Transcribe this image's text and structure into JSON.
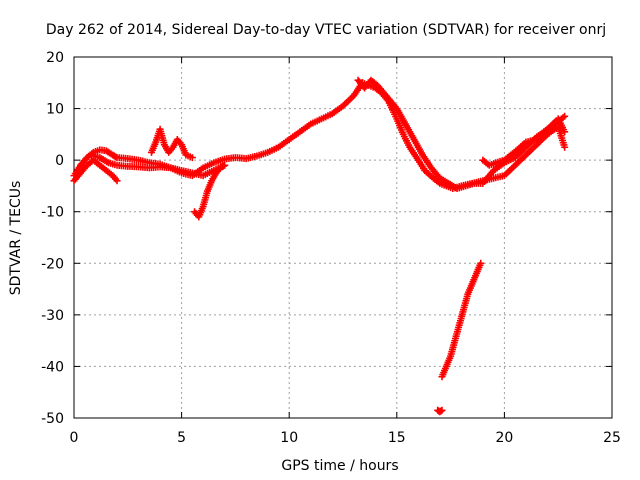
{
  "chart_data": {
    "type": "scatter",
    "title": "Day 262 of 2014, Sidereal Day-to-day VTEC variation (SDTVAR) for receiver onrj",
    "xlabel": "GPS time / hours",
    "ylabel": "SDTVAR / TECUs",
    "xlim": [
      0,
      25
    ],
    "ylim": [
      -50,
      20
    ],
    "xticks": [
      0,
      5,
      10,
      15,
      20,
      25
    ],
    "yticks": [
      -50,
      -40,
      -30,
      -20,
      -10,
      0,
      10,
      20
    ],
    "xtick_labels": [
      "0",
      "5",
      "10",
      "15",
      "20",
      "25"
    ],
    "ytick_labels": [
      "-50",
      "-40",
      "-30",
      "-20",
      "-10",
      "0",
      "10",
      "20"
    ],
    "grid": true,
    "marker": "+",
    "color": "#ff0000",
    "series": [
      {
        "name": "track-a",
        "x": [
          0.0,
          0.3,
          0.6,
          0.9,
          1.2,
          1.5,
          1.8,
          2.0,
          2.5,
          3.0,
          3.5,
          4.0,
          4.5,
          5.0,
          5.5,
          6.0,
          6.5,
          7.0,
          7.5,
          8.0,
          8.5,
          9.0,
          9.5,
          10.0,
          10.5,
          11.0,
          11.5,
          12.0,
          12.5,
          13.0,
          13.4
        ],
        "y": [
          -3.0,
          -1.0,
          0.5,
          1.5,
          2.0,
          1.8,
          1.0,
          0.5,
          0.3,
          0.0,
          -0.5,
          -0.8,
          -1.5,
          -2.5,
          -3.0,
          -1.5,
          -0.5,
          0.2,
          0.5,
          0.3,
          0.8,
          1.5,
          2.5,
          4.0,
          5.5,
          7.0,
          8.0,
          9.0,
          10.5,
          12.5,
          15.0
        ]
      },
      {
        "name": "track-b",
        "x": [
          0.0,
          0.3,
          0.6,
          0.9,
          1.2,
          1.5,
          1.8,
          2.0
        ],
        "y": [
          -4.0,
          -2.5,
          -1.0,
          0.0,
          -1.0,
          -2.0,
          -3.0,
          -4.0
        ]
      },
      {
        "name": "track-c",
        "x": [
          0.8,
          1.2,
          1.6,
          2.0,
          2.5,
          3.0,
          3.5,
          4.0,
          4.5,
          5.0,
          5.5,
          6.0,
          6.5,
          7.0
        ],
        "y": [
          1.0,
          0.5,
          -0.5,
          -1.0,
          -1.2,
          -1.3,
          -1.5,
          -1.3,
          -1.5,
          -2.0,
          -2.5,
          -3.0,
          -2.0,
          -1.0
        ]
      },
      {
        "name": "track-d",
        "x": [
          3.6,
          3.8,
          4.0,
          4.2,
          4.4,
          4.6,
          4.8,
          5.0,
          5.2,
          5.5
        ],
        "y": [
          1.5,
          3.5,
          6.0,
          3.0,
          1.5,
          2.5,
          4.0,
          3.0,
          1.0,
          0.5
        ]
      },
      {
        "name": "track-e",
        "x": [
          5.6,
          5.8,
          6.0,
          6.2,
          6.4,
          6.6,
          6.8,
          7.0
        ],
        "y": [
          -10.0,
          -11.0,
          -9.0,
          -6.0,
          -4.0,
          -2.5,
          -1.5,
          -1.0
        ]
      },
      {
        "name": "track-f",
        "x": [
          13.4,
          13.7,
          14.0,
          14.3,
          14.6,
          15.0,
          15.3,
          15.6,
          16.0,
          16.3,
          16.7,
          17.0,
          17.3,
          17.6,
          18.0,
          18.5,
          19.0,
          19.5,
          20.0,
          20.5,
          21.0,
          21.5,
          22.0,
          22.5,
          22.8
        ],
        "y": [
          15.0,
          14.5,
          14.0,
          13.0,
          11.5,
          8.0,
          5.0,
          2.5,
          0.0,
          -2.0,
          -3.5,
          -4.5,
          -5.0,
          -5.5,
          -5.0,
          -4.5,
          -4.0,
          -3.5,
          -3.0,
          -1.0,
          1.0,
          3.0,
          5.0,
          6.5,
          2.5
        ]
      },
      {
        "name": "track-g",
        "x": [
          13.2,
          13.5,
          13.8,
          14.1,
          14.5,
          15.0,
          15.4,
          15.8,
          16.2,
          16.6,
          17.0,
          17.4,
          17.8,
          18.2,
          18.6,
          19.0,
          19.5,
          20.0,
          20.5,
          21.0,
          21.5,
          22.0,
          22.5,
          22.8
        ],
        "y": [
          15.5,
          14.0,
          15.5,
          14.5,
          12.5,
          10.0,
          7.0,
          4.0,
          1.0,
          -1.5,
          -3.5,
          -4.5,
          -5.5,
          -5.0,
          -4.5,
          -4.5,
          -2.0,
          -0.5,
          0.5,
          2.5,
          4.5,
          6.0,
          7.5,
          8.5
        ]
      },
      {
        "name": "track-h",
        "x": [
          19.0,
          19.3,
          19.6,
          20.0,
          20.3,
          20.6,
          21.0,
          21.5,
          22.0,
          22.5,
          22.8
        ],
        "y": [
          0.0,
          -1.0,
          -0.5,
          0.0,
          1.0,
          2.0,
          3.5,
          4.0,
          6.0,
          8.0,
          5.5
        ]
      },
      {
        "name": "track-i",
        "x": [
          17.1,
          17.3,
          17.5,
          17.7,
          17.9,
          18.1,
          18.3,
          18.5,
          18.7,
          18.9
        ],
        "y": [
          -42.0,
          -40.0,
          -38.0,
          -35.0,
          -32.0,
          -29.0,
          -26.0,
          -24.0,
          -22.0,
          -20.0
        ]
      },
      {
        "name": "track-j",
        "x": [
          16.9,
          17.0,
          17.1
        ],
        "y": [
          -48.5,
          -48.8,
          -48.5
        ]
      }
    ]
  }
}
